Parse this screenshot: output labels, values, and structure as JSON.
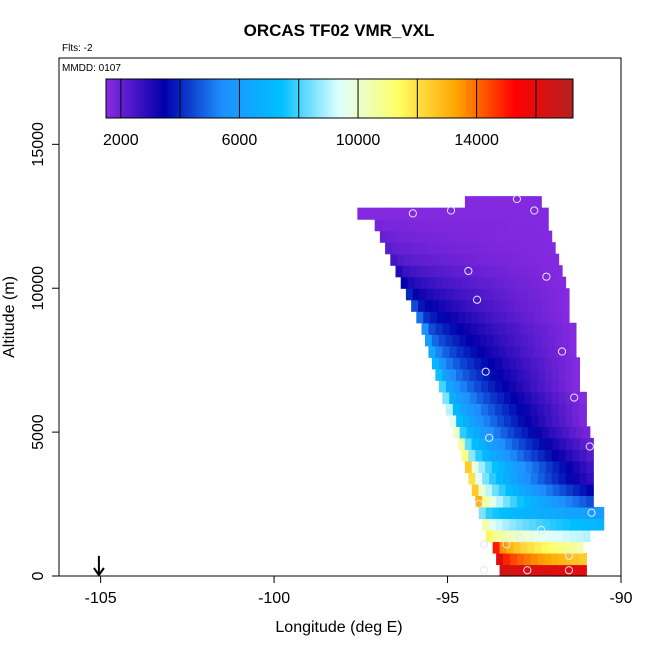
{
  "chart_data": {
    "type": "heatmap",
    "title": "ORCAS TF02 VMR_VXL",
    "subtitle_flights": "Flts: -2",
    "annotation_mmdd": "MMDD: 0107",
    "xlabel": "Longitude (deg E)",
    "ylabel": "Altitude (m)",
    "xlim": [
      -106.2,
      -90
    ],
    "ylim": [
      0,
      18000
    ],
    "x_ticks": [
      -105,
      -100,
      -95,
      -90
    ],
    "x_tick_labels": [
      "-105",
      "-100",
      "-95",
      "-90"
    ],
    "y_ticks": [
      0,
      5000,
      10000,
      15000
    ],
    "y_tick_labels": [
      "0",
      "5000",
      "10000",
      "15000"
    ],
    "colorbar": {
      "range": [
        1500,
        17250
      ],
      "tick_values": [
        2000,
        6000,
        10000,
        14000
      ],
      "tick_labels": [
        "2000",
        "6000",
        "10000",
        "14000"
      ],
      "divisions": [
        2000,
        4000,
        6000,
        8000,
        10000,
        12000,
        14000,
        16000
      ],
      "colors": [
        "#8a2be2",
        "#0000aa",
        "#1e90ff",
        "#00bfff",
        "#e0ffff",
        "#ffff66",
        "#ffa500",
        "#ff0000",
        "#b22222"
      ]
    },
    "altitude_bins": [
      {
        "alt": 200,
        "west": -93.5,
        "east": -91.0,
        "value_west": 16500,
        "value_east": 16000
      },
      {
        "alt": 600,
        "west": -93.6,
        "east": -91.0,
        "value_west": 16000,
        "value_east": 12500
      },
      {
        "alt": 1000,
        "west": -93.7,
        "east": -91.1,
        "value_west": 15000,
        "value_east": 10500
      },
      {
        "alt": 1400,
        "west": -93.9,
        "east": -90.9,
        "value_west": 11500,
        "value_east": 9000
      },
      {
        "alt": 1800,
        "west": -94.0,
        "east": -90.5,
        "value_west": 10500,
        "value_east": 7000
      },
      {
        "alt": 2200,
        "west": -94.1,
        "east": -90.5,
        "value_west": 8500,
        "value_east": 6000
      },
      {
        "alt": 2600,
        "west": -94.2,
        "east": -90.8,
        "value_west": 13000,
        "value_east": 4500
      },
      {
        "alt": 3000,
        "west": -94.3,
        "east": -90.8,
        "value_west": 12500,
        "value_east": 3500
      },
      {
        "alt": 3400,
        "west": -94.4,
        "east": -90.8,
        "value_west": 12000,
        "value_east": 2800
      },
      {
        "alt": 3800,
        "west": -94.5,
        "east": -90.8,
        "value_west": 12500,
        "value_east": 2600
      },
      {
        "alt": 4200,
        "west": -94.6,
        "east": -90.8,
        "value_west": 11000,
        "value_east": 2300
      },
      {
        "alt": 4600,
        "west": -94.7,
        "east": -90.8,
        "value_west": 10500,
        "value_east": 2000
      },
      {
        "alt": 5000,
        "west": -94.85,
        "east": -90.9,
        "value_west": 10000,
        "value_east": 1800
      },
      {
        "alt": 5400,
        "west": -94.95,
        "east": -91.0,
        "value_west": 9500,
        "value_east": 1700
      },
      {
        "alt": 5800,
        "west": -95.05,
        "east": -91.0,
        "value_west": 9000,
        "value_east": 1700
      },
      {
        "alt": 6200,
        "west": -95.15,
        "east": -91.0,
        "value_west": 8500,
        "value_east": 1600
      },
      {
        "alt": 6600,
        "west": -95.25,
        "east": -91.2,
        "value_west": 8000,
        "value_east": 1600
      },
      {
        "alt": 7000,
        "west": -95.35,
        "east": -91.2,
        "value_west": 7500,
        "value_east": 1600
      },
      {
        "alt": 7400,
        "west": -95.45,
        "east": -91.2,
        "value_west": 7000,
        "value_east": 1600
      },
      {
        "alt": 7800,
        "west": -95.55,
        "east": -91.3,
        "value_west": 6500,
        "value_east": 1600
      },
      {
        "alt": 8200,
        "west": -95.65,
        "east": -91.3,
        "value_west": 6000,
        "value_east": 1600
      },
      {
        "alt": 8600,
        "west": -95.75,
        "east": -91.3,
        "value_west": 5500,
        "value_east": 1600
      },
      {
        "alt": 9000,
        "west": -95.9,
        "east": -91.5,
        "value_west": 5000,
        "value_east": 1600
      },
      {
        "alt": 9400,
        "west": -96.05,
        "east": -91.5,
        "value_west": 4500,
        "value_east": 1600
      },
      {
        "alt": 9800,
        "west": -96.2,
        "east": -91.5,
        "value_west": 4000,
        "value_east": 1600
      },
      {
        "alt": 10200,
        "west": -96.35,
        "east": -91.6,
        "value_west": 3500,
        "value_east": 1600
      },
      {
        "alt": 10600,
        "west": -96.5,
        "east": -91.7,
        "value_west": 3000,
        "value_east": 1600
      },
      {
        "alt": 11000,
        "west": -96.65,
        "east": -91.8,
        "value_west": 2500,
        "value_east": 1600
      },
      {
        "alt": 11400,
        "west": -96.8,
        "east": -91.9,
        "value_west": 2200,
        "value_east": 1600
      },
      {
        "alt": 11800,
        "west": -96.95,
        "east": -92.0,
        "value_west": 2000,
        "value_east": 1600
      },
      {
        "alt": 12200,
        "west": -97.1,
        "east": -92.1,
        "value_west": 1800,
        "value_east": 1600
      },
      {
        "alt": 12600,
        "west": -97.6,
        "east": -92.1,
        "value_west": 1600,
        "value_east": 1600
      },
      {
        "alt": 13000,
        "west": -94.5,
        "east": -92.3,
        "value_west": 1600,
        "value_east": 1600
      }
    ],
    "flight_points": [
      {
        "lon": -96.0,
        "alt": 12600
      },
      {
        "lon": -94.9,
        "alt": 12700
      },
      {
        "lon": -93.0,
        "alt": 13100
      },
      {
        "lon": -92.5,
        "alt": 12700
      },
      {
        "lon": -94.4,
        "alt": 10600
      },
      {
        "lon": -94.15,
        "alt": 9600
      },
      {
        "lon": -92.15,
        "alt": 10400
      },
      {
        "lon": -91.7,
        "alt": 7800
      },
      {
        "lon": -93.9,
        "alt": 7100
      },
      {
        "lon": -91.35,
        "alt": 6200
      },
      {
        "lon": -93.8,
        "alt": 4800
      },
      {
        "lon": -90.9,
        "alt": 4500
      },
      {
        "lon": -94.1,
        "alt": 2500
      },
      {
        "lon": -90.85,
        "alt": 2200
      },
      {
        "lon": -92.9,
        "alt": 1300
      },
      {
        "lon": -93.3,
        "alt": 1100
      },
      {
        "lon": -93.95,
        "alt": 1100
      },
      {
        "lon": -92.3,
        "alt": 1600
      },
      {
        "lon": -91.5,
        "alt": 700
      },
      {
        "lon": -93.95,
        "alt": 200
      },
      {
        "lon": -92.7,
        "alt": 200
      },
      {
        "lon": -91.5,
        "alt": 200
      }
    ],
    "arrow_marker": {
      "lon": -105.05,
      "alt_top": 700,
      "alt_bottom": 0
    }
  }
}
